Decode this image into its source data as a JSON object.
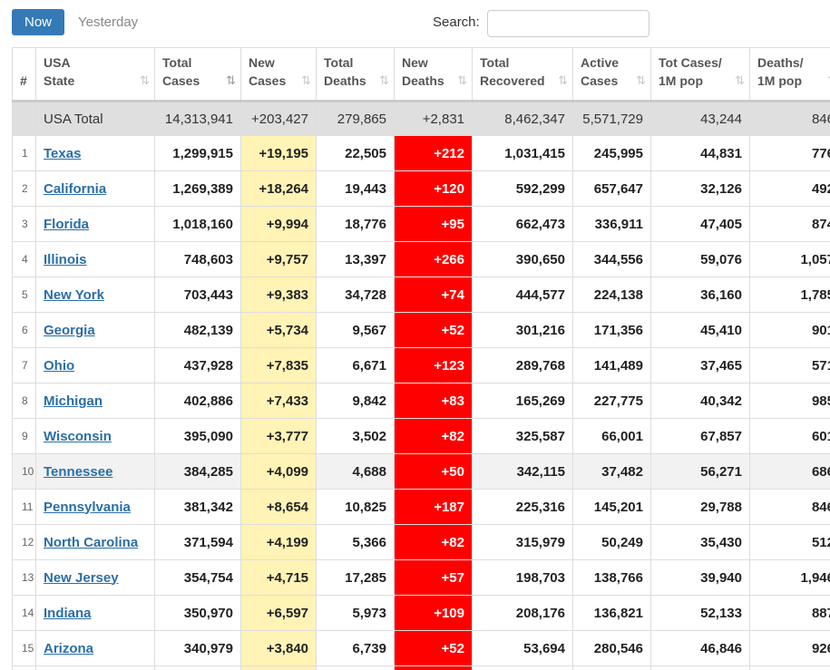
{
  "tabs": {
    "now": "Now",
    "yesterday": "Yesterday"
  },
  "search": {
    "label": "Search:",
    "value": "",
    "placeholder": ""
  },
  "colors": {
    "primary": "#337ab7",
    "new_cases_bg": "#fff3b5",
    "new_deaths_bg": "#ff0000",
    "link": "#2a6ea6"
  },
  "columns": [
    {
      "line1": "#",
      "line2": ""
    },
    {
      "line1": "USA",
      "line2": "State"
    },
    {
      "line1": "Total",
      "line2": "Cases"
    },
    {
      "line1": "New",
      "line2": "Cases"
    },
    {
      "line1": "Total",
      "line2": "Deaths"
    },
    {
      "line1": "New",
      "line2": "Deaths"
    },
    {
      "line1": "Total",
      "line2": "Recovered"
    },
    {
      "line1": "Active",
      "line2": "Cases"
    },
    {
      "line1": "Tot Cases/",
      "line2": "1M pop"
    },
    {
      "line1": "Deaths/",
      "line2": "1M pop"
    }
  ],
  "sort_icon": "⇅",
  "total": {
    "label": "USA Total",
    "total_cases": "14,313,941",
    "new_cases": "+203,427",
    "total_deaths": "279,865",
    "new_deaths": "+2,831",
    "total_recovered": "8,462,347",
    "active_cases": "5,571,729",
    "cases_per_m": "43,244",
    "deaths_per_m": "846"
  },
  "rows": [
    {
      "idx": "1",
      "state": "Texas",
      "total_cases": "1,299,915",
      "new_cases": "+19,195",
      "total_deaths": "22,505",
      "new_deaths": "+212",
      "total_recovered": "1,031,415",
      "active_cases": "245,995",
      "cases_per_m": "44,831",
      "deaths_per_m": "776"
    },
    {
      "idx": "2",
      "state": "California",
      "total_cases": "1,269,389",
      "new_cases": "+18,264",
      "total_deaths": "19,443",
      "new_deaths": "+120",
      "total_recovered": "592,299",
      "active_cases": "657,647",
      "cases_per_m": "32,126",
      "deaths_per_m": "492"
    },
    {
      "idx": "3",
      "state": "Florida",
      "total_cases": "1,018,160",
      "new_cases": "+9,994",
      "total_deaths": "18,776",
      "new_deaths": "+95",
      "total_recovered": "662,473",
      "active_cases": "336,911",
      "cases_per_m": "47,405",
      "deaths_per_m": "874"
    },
    {
      "idx": "4",
      "state": "Illinois",
      "total_cases": "748,603",
      "new_cases": "+9,757",
      "total_deaths": "13,397",
      "new_deaths": "+266",
      "total_recovered": "390,650",
      "active_cases": "344,556",
      "cases_per_m": "59,076",
      "deaths_per_m": "1,057"
    },
    {
      "idx": "5",
      "state": "New York",
      "total_cases": "703,443",
      "new_cases": "+9,383",
      "total_deaths": "34,728",
      "new_deaths": "+74",
      "total_recovered": "444,577",
      "active_cases": "224,138",
      "cases_per_m": "36,160",
      "deaths_per_m": "1,785"
    },
    {
      "idx": "6",
      "state": "Georgia",
      "total_cases": "482,139",
      "new_cases": "+5,734",
      "total_deaths": "9,567",
      "new_deaths": "+52",
      "total_recovered": "301,216",
      "active_cases": "171,356",
      "cases_per_m": "45,410",
      "deaths_per_m": "901"
    },
    {
      "idx": "7",
      "state": "Ohio",
      "total_cases": "437,928",
      "new_cases": "+7,835",
      "total_deaths": "6,671",
      "new_deaths": "+123",
      "total_recovered": "289,768",
      "active_cases": "141,489",
      "cases_per_m": "37,465",
      "deaths_per_m": "571"
    },
    {
      "idx": "8",
      "state": "Michigan",
      "total_cases": "402,886",
      "new_cases": "+7,433",
      "total_deaths": "9,842",
      "new_deaths": "+83",
      "total_recovered": "165,269",
      "active_cases": "227,775",
      "cases_per_m": "40,342",
      "deaths_per_m": "985"
    },
    {
      "idx": "9",
      "state": "Wisconsin",
      "total_cases": "395,090",
      "new_cases": "+3,777",
      "total_deaths": "3,502",
      "new_deaths": "+82",
      "total_recovered": "325,587",
      "active_cases": "66,001",
      "cases_per_m": "67,857",
      "deaths_per_m": "601"
    },
    {
      "idx": "10",
      "state": "Tennessee",
      "total_cases": "384,285",
      "new_cases": "+4,099",
      "total_deaths": "4,688",
      "new_deaths": "+50",
      "total_recovered": "342,115",
      "active_cases": "37,482",
      "cases_per_m": "56,271",
      "deaths_per_m": "686"
    },
    {
      "idx": "11",
      "state": "Pennsylvania",
      "total_cases": "381,342",
      "new_cases": "+8,654",
      "total_deaths": "10,825",
      "new_deaths": "+187",
      "total_recovered": "225,316",
      "active_cases": "145,201",
      "cases_per_m": "29,788",
      "deaths_per_m": "846"
    },
    {
      "idx": "12",
      "state": "North Carolina",
      "total_cases": "371,594",
      "new_cases": "+4,199",
      "total_deaths": "5,366",
      "new_deaths": "+82",
      "total_recovered": "315,979",
      "active_cases": "50,249",
      "cases_per_m": "35,430",
      "deaths_per_m": "512"
    },
    {
      "idx": "13",
      "state": "New Jersey",
      "total_cases": "354,754",
      "new_cases": "+4,715",
      "total_deaths": "17,285",
      "new_deaths": "+57",
      "total_recovered": "198,703",
      "active_cases": "138,766",
      "cases_per_m": "39,940",
      "deaths_per_m": "1,946"
    },
    {
      "idx": "14",
      "state": "Indiana",
      "total_cases": "350,970",
      "new_cases": "+6,597",
      "total_deaths": "5,973",
      "new_deaths": "+109",
      "total_recovered": "208,176",
      "active_cases": "136,821",
      "cases_per_m": "52,133",
      "deaths_per_m": "887"
    },
    {
      "idx": "15",
      "state": "Arizona",
      "total_cases": "340,979",
      "new_cases": "+3,840",
      "total_deaths": "6,739",
      "new_deaths": "+52",
      "total_recovered": "53,694",
      "active_cases": "280,546",
      "cases_per_m": "46,846",
      "deaths_per_m": "926"
    }
  ]
}
